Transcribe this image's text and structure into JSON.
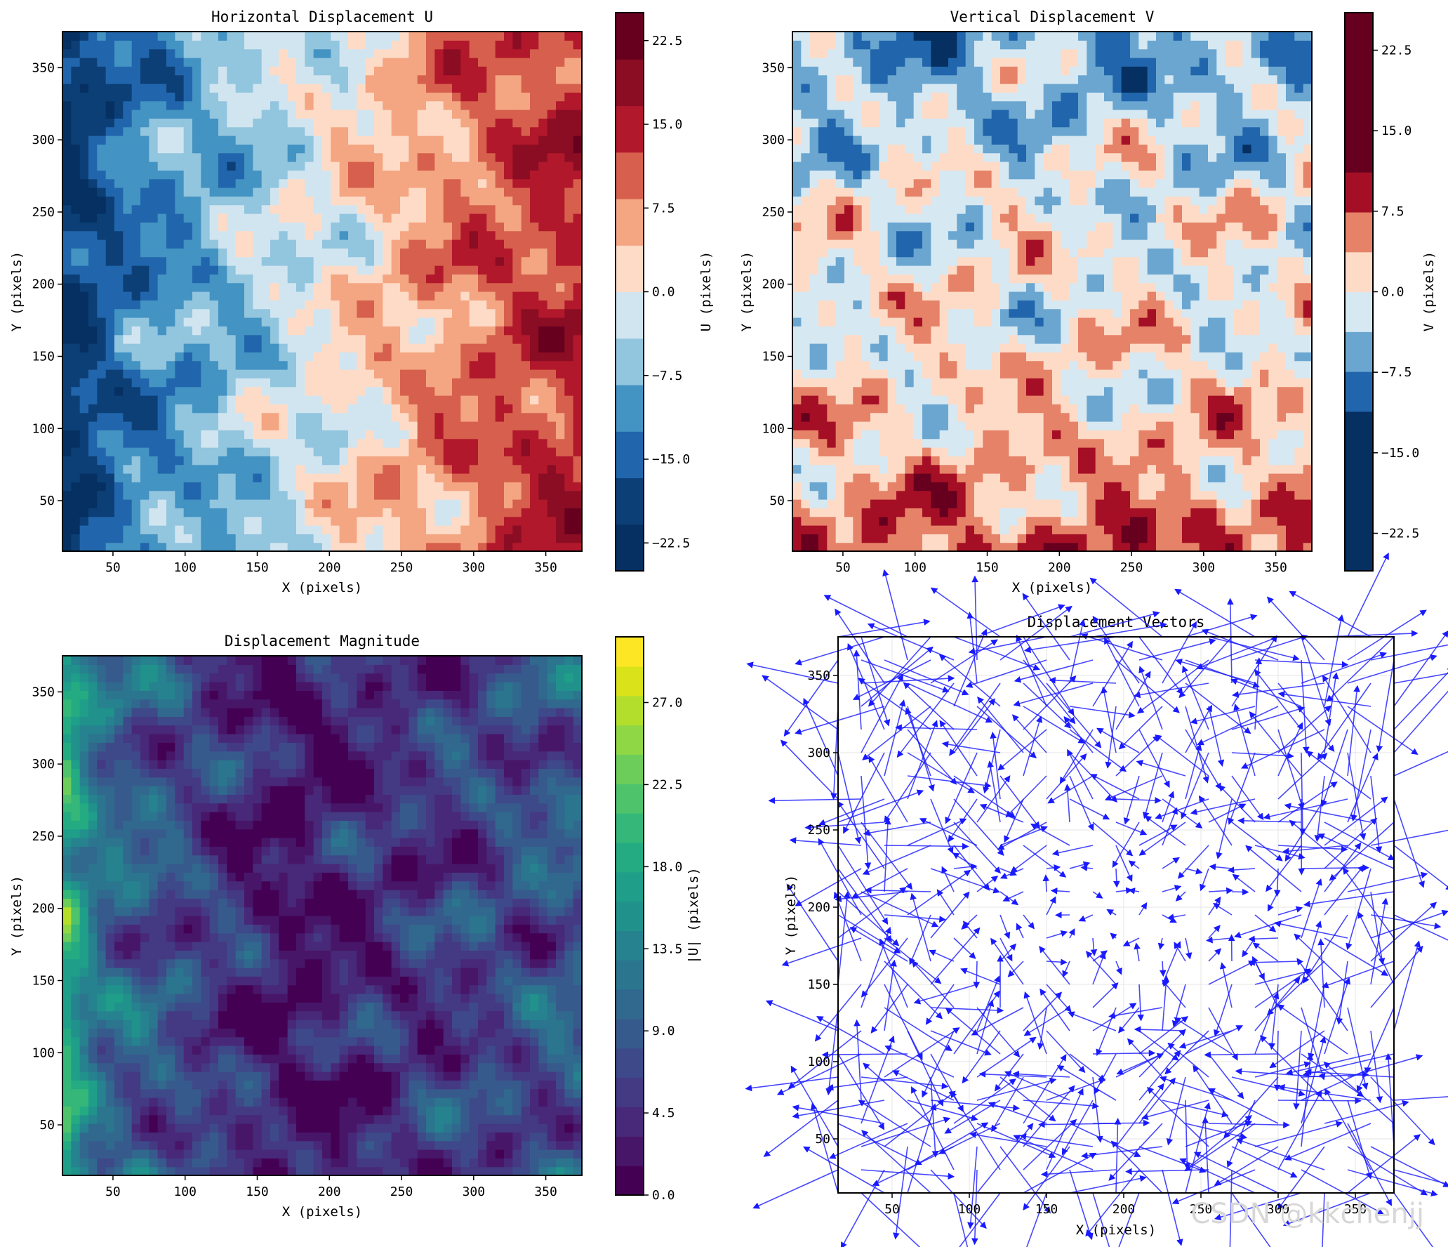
{
  "watermark": "CSDN @kkchenjj",
  "chart_data": [
    {
      "type": "contour",
      "title": "Horizontal Displacement U",
      "xlabel": "X (pixels)",
      "ylabel": "Y (pixels)",
      "xlim": [
        15,
        375
      ],
      "ylim": [
        15,
        375
      ],
      "xticks": [
        50,
        100,
        150,
        200,
        250,
        300,
        350
      ],
      "yticks": [
        50,
        100,
        150,
        200,
        250,
        300,
        350
      ],
      "colormap": "RdBu_r",
      "colorbar": {
        "label": "U (pixels)",
        "range": [
          -25,
          25
        ],
        "ticks": [
          -22.5,
          -15.0,
          -7.5,
          0.0,
          7.5,
          15.0,
          22.5
        ],
        "tick_labels": [
          "−22.5",
          "−15.0",
          "−7.5",
          "0.0",
          "7.5",
          "15.0",
          "22.5"
        ],
        "colors": [
          "#053061",
          "#0d3f77",
          "#2166ac",
          "#4393c3",
          "#92c5de",
          "#d1e5f0",
          "#fddbc7",
          "#f4a582",
          "#d6604d",
          "#b2182b",
          "#8b0d24",
          "#67001f"
        ]
      },
      "z_profile": {
        "x": [
          15,
          60,
          120,
          200,
          260,
          330,
          375
        ],
        "values": [
          -22,
          -13,
          -8,
          0,
          6,
          12,
          15
        ]
      }
    },
    {
      "type": "contour",
      "title": "Vertical Displacement V",
      "xlabel": "X (pixels)",
      "ylabel": "Y (pixels)",
      "xlim": [
        15,
        375
      ],
      "ylim": [
        15,
        375
      ],
      "xticks": [
        50,
        100,
        150,
        200,
        250,
        300,
        350
      ],
      "yticks": [
        50,
        100,
        150,
        200,
        250,
        300,
        350
      ],
      "colormap": "RdBu_r",
      "colorbar": {
        "label": "V (pixels)",
        "range": [
          -26,
          26
        ],
        "ticks": [
          -22.5,
          -15.0,
          -7.5,
          0.0,
          7.5,
          15.0,
          22.5
        ],
        "tick_labels": [
          "−22.5",
          "−15.0",
          "−7.5",
          "0.0",
          "7.5",
          "15.0",
          "22.5"
        ],
        "colors": [
          "#053061",
          "#053061",
          "#053061",
          "#053061",
          "#2166ac",
          "#6aa6d0",
          "#d6e8f2",
          "#fddbc7",
          "#e58268",
          "#a50f25",
          "#67001f",
          "#67001f",
          "#67001f",
          "#67001f"
        ]
      },
      "z_profile": {
        "y": [
          15,
          60,
          130,
          200,
          270,
          330,
          375
        ],
        "values": [
          8,
          4,
          1,
          0,
          -1,
          -4,
          -6
        ]
      }
    },
    {
      "type": "contour",
      "title": "Displacement Magnitude",
      "xlabel": "X (pixels)",
      "ylabel": "Y (pixels)",
      "xlim": [
        15,
        375
      ],
      "ylim": [
        15,
        375
      ],
      "xticks": [
        50,
        100,
        150,
        200,
        250,
        300,
        350
      ],
      "yticks": [
        50,
        100,
        150,
        200,
        250,
        300,
        350
      ],
      "colormap": "viridis",
      "colorbar": {
        "label": "|U| (pixels)",
        "range": [
          0,
          30.6
        ],
        "ticks": [
          0.0,
          4.5,
          9.0,
          13.5,
          18.0,
          22.5,
          27.0
        ],
        "tick_labels": [
          "0.0",
          "4.5",
          "9.0",
          "13.5",
          "18.0",
          "22.5",
          "27.0"
        ],
        "colors": [
          "#440154",
          "#481668",
          "#482878",
          "#443983",
          "#3e4989",
          "#375a8c",
          "#31688e",
          "#2b758e",
          "#26828e",
          "#21918c",
          "#1f9e89",
          "#25ab82",
          "#35b779",
          "#4ec36b",
          "#6ccd5a",
          "#8fd744",
          "#b4de2c",
          "#dae319",
          "#fde725"
        ]
      },
      "z_profile": {
        "x": [
          15,
          40,
          100,
          170,
          250,
          330,
          375
        ],
        "values": [
          20,
          11,
          7,
          2,
          5,
          7,
          9
        ]
      }
    },
    {
      "type": "quiver",
      "title": "Displacement Vectors",
      "xlabel": "X (pixels)",
      "ylabel": "Y (pixels)",
      "xlim": [
        15,
        375
      ],
      "ylim": [
        15,
        375
      ],
      "xticks": [
        50,
        100,
        150,
        200,
        250,
        300,
        350
      ],
      "yticks": [
        50,
        100,
        150,
        200,
        250,
        300,
        350
      ],
      "grid": true,
      "arrow_color": "#1a1aff",
      "grid_spacing": 15,
      "grid_start": 15,
      "max_arrow_length": 60
    }
  ]
}
